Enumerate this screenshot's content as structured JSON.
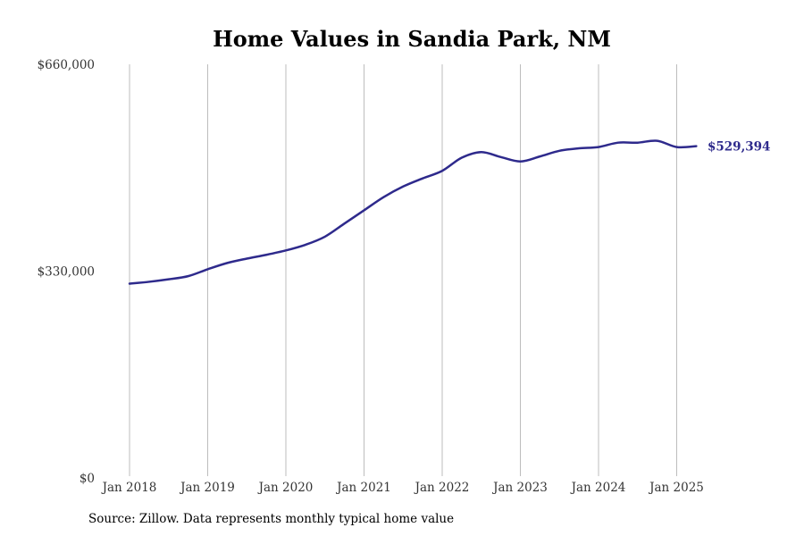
{
  "chart_data": {
    "type": "line",
    "title": "Home Values in Sandia Park, NM",
    "xlabel": "",
    "ylabel": "",
    "x_tick_labels": [
      "Jan 2018",
      "Jan 2019",
      "Jan 2020",
      "Jan 2021",
      "Jan 2022",
      "Jan 2023",
      "Jan 2024",
      "Jan 2025"
    ],
    "y_tick_labels": [
      "$0",
      "$330,000",
      "$660,000"
    ],
    "y_ticks": [
      0,
      330000,
      660000
    ],
    "ylim": [
      0,
      660000
    ],
    "x_start": "2018-01",
    "grid": "vertical",
    "series": [
      {
        "color": "#2e2a8c",
        "end_label": "$529,394",
        "x": [
          "2018-01",
          "2018-04",
          "2018-07",
          "2018-10",
          "2019-01",
          "2019-04",
          "2019-07",
          "2019-10",
          "2020-01",
          "2020-04",
          "2020-07",
          "2020-10",
          "2021-01",
          "2021-04",
          "2021-07",
          "2021-10",
          "2022-01",
          "2022-04",
          "2022-07",
          "2022-10",
          "2023-01",
          "2023-04",
          "2023-07",
          "2023-10",
          "2024-01",
          "2024-04",
          "2024-07",
          "2024-10",
          "2025-01",
          "2025-04"
        ],
        "values": [
          310000,
          313000,
          317000,
          322000,
          333000,
          343000,
          350000,
          356000,
          363000,
          372000,
          385000,
          406000,
          427000,
          448000,
          465000,
          478000,
          490000,
          511000,
          520000,
          512000,
          505000,
          513000,
          522000,
          526000,
          528000,
          535000,
          535000,
          538000,
          528000,
          529394
        ]
      }
    ]
  },
  "source_text": "Source: Zillow. Data represents monthly typical home value"
}
